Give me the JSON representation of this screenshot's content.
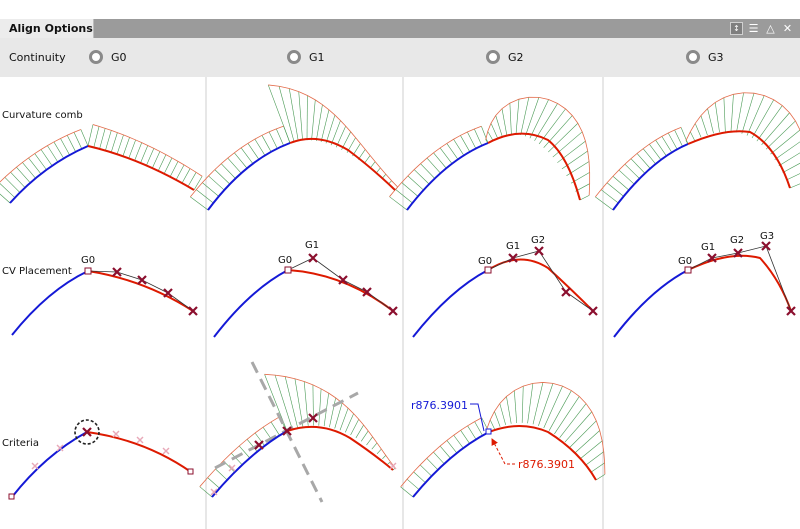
{
  "window": {
    "tab_title": "Align Options"
  },
  "titlebar_icons": [
    "resize-icon",
    "list-icon",
    "collapse-icon",
    "close-icon"
  ],
  "continuity": {
    "label": "Continuity",
    "options": [
      "G0",
      "G1",
      "G2",
      "G3"
    ]
  },
  "rows": {
    "comb": "Curvature comb",
    "cv": "CV Placement",
    "criteria": "Criteria"
  },
  "cv_labels": {
    "g0": [
      "G0"
    ],
    "g1": [
      "G0",
      "G1"
    ],
    "g2": [
      "G0",
      "G1",
      "G2"
    ],
    "g3": [
      "G0",
      "G1",
      "G2",
      "G3"
    ]
  },
  "radius": {
    "left": "r876.3901",
    "right": "r876.3901"
  },
  "colors": {
    "curve_a": "#1419d6",
    "curve_b": "#dd1a00",
    "comb": "#e36b4a",
    "cv": "#8b0f2e",
    "panel": "#e8e8e8",
    "titlebar": "#9b9b9b"
  }
}
